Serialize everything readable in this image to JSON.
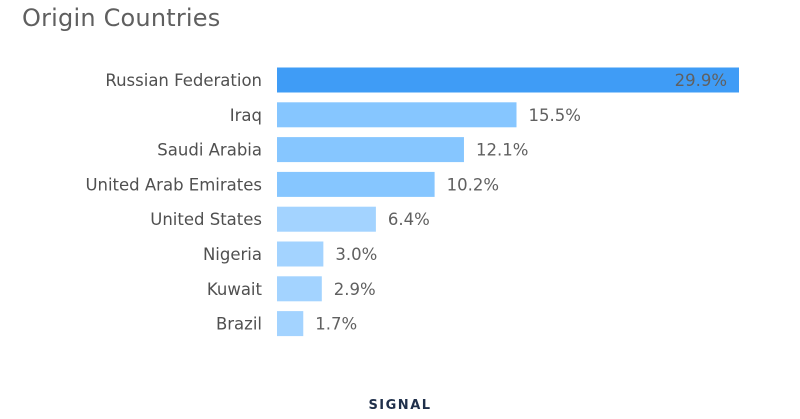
{
  "chart_data": {
    "type": "bar",
    "orientation": "horizontal",
    "title": "Origin Countries",
    "categories": [
      "Russian Federation",
      "Iraq",
      "Saudi Arabia",
      "United Arab Emirates",
      "United States",
      "Nigeria",
      "Kuwait",
      "Brazil"
    ],
    "values": [
      29.9,
      15.5,
      12.1,
      10.2,
      6.4,
      3.0,
      2.9,
      1.7
    ],
    "value_labels": [
      "29.9%",
      "15.5%",
      "12.1%",
      "10.2%",
      "6.4%",
      "3.0%",
      "2.9%",
      "1.7%"
    ],
    "xlim": [
      0,
      29.9
    ],
    "xlabel": "",
    "ylabel": "",
    "grid": false,
    "legend": "none",
    "colors": {
      "highlight_bar": "#3f9cf6",
      "bar_light": "#86c6ff",
      "bar_lighter": "#a3d3ff"
    }
  },
  "branding": {
    "logo_text": "SIGNAL"
  }
}
